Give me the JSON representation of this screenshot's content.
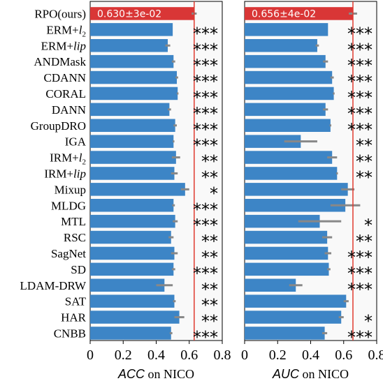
{
  "chart_data": {
    "type": "bar",
    "orientation": "horizontal",
    "categories": [
      "RPO(ours)",
      "ERM+l2",
      "ERM+lip",
      "ANDMask",
      "CDANN",
      "CORAL",
      "DANN",
      "GroupDRO",
      "IGA",
      "IRM+l2",
      "IRM+lip",
      "Mixup",
      "MLDG",
      "MTL",
      "RSC",
      "SagNet",
      "SD",
      "LDAM-DRW",
      "SAT",
      "HAR",
      "CNBB"
    ],
    "category_parts": [
      [
        {
          "t": "RPO(ours)",
          "s": "n"
        }
      ],
      [
        {
          "t": "ERM+",
          "s": "n"
        },
        {
          "t": "l",
          "s": "i"
        },
        {
          "t": "2",
          "s": "sub"
        }
      ],
      [
        {
          "t": "ERM+",
          "s": "n"
        },
        {
          "t": "lip",
          "s": "i"
        }
      ],
      [
        {
          "t": "ANDMask",
          "s": "n"
        }
      ],
      [
        {
          "t": "CDANN",
          "s": "n"
        }
      ],
      [
        {
          "t": "CORAL",
          "s": "n"
        }
      ],
      [
        {
          "t": "DANN",
          "s": "n"
        }
      ],
      [
        {
          "t": "GroupDRO",
          "s": "n"
        }
      ],
      [
        {
          "t": "IGA",
          "s": "n"
        }
      ],
      [
        {
          "t": "IRM+",
          "s": "n"
        },
        {
          "t": "l",
          "s": "i"
        },
        {
          "t": "2",
          "s": "sub"
        }
      ],
      [
        {
          "t": "IRM+",
          "s": "n"
        },
        {
          "t": "lip",
          "s": "i"
        }
      ],
      [
        {
          "t": "Mixup",
          "s": "n"
        }
      ],
      [
        {
          "t": "MLDG",
          "s": "n"
        }
      ],
      [
        {
          "t": "MTL",
          "s": "n"
        }
      ],
      [
        {
          "t": "RSC",
          "s": "n"
        }
      ],
      [
        {
          "t": "SagNet",
          "s": "n"
        }
      ],
      [
        {
          "t": "SD",
          "s": "n"
        }
      ],
      [
        {
          "t": "LDAM-DRW",
          "s": "n"
        }
      ],
      [
        {
          "t": "SAT",
          "s": "n"
        }
      ],
      [
        {
          "t": "HAR",
          "s": "n"
        }
      ],
      [
        {
          "t": "CNBB",
          "s": "n"
        }
      ]
    ],
    "panels": [
      {
        "metric": "ACC",
        "xlabel_italic": "ACC",
        "xlabel_rest": " on NICO",
        "xlim": [
          0,
          0.8
        ],
        "xticks": [
          "0",
          "0.2",
          "0.4",
          "0.6",
          "0.8"
        ],
        "reference_line": 0.63,
        "callout": "0.630±3e-02",
        "values": [
          0.63,
          0.5,
          0.47,
          0.505,
          0.525,
          0.53,
          0.48,
          0.515,
          0.505,
          0.52,
          0.51,
          0.575,
          0.505,
          0.515,
          0.49,
          0.51,
          0.505,
          0.45,
          0.51,
          0.54,
          0.49
        ],
        "errors": [
          0.015,
          0.0,
          0.015,
          0.01,
          0.008,
          0.005,
          0.01,
          0.01,
          0.005,
          0.025,
          0.02,
          0.025,
          0.008,
          0.015,
          0.015,
          0.02,
          0.01,
          0.05,
          0.008,
          0.03,
          0.008
        ],
        "significance": [
          "",
          "***",
          "***",
          "***",
          "***",
          "***",
          "***",
          "***",
          "***",
          "**",
          "**",
          "*",
          "***",
          "***",
          "**",
          "**",
          "***",
          "**",
          "**",
          "**",
          "***"
        ]
      },
      {
        "metric": "AUC",
        "xlabel_italic": "AUC",
        "xlabel_rest": " on NICO",
        "xlim": [
          0,
          0.8
        ],
        "xticks": [
          "0",
          "0.2",
          "0.4",
          "0.6",
          "0.8"
        ],
        "reference_line": 0.656,
        "callout": "0.656±4e-02",
        "values": [
          0.656,
          0.505,
          0.44,
          0.49,
          0.53,
          0.54,
          0.49,
          0.52,
          0.34,
          0.53,
          0.56,
          0.625,
          0.61,
          0.455,
          0.5,
          0.505,
          0.51,
          0.31,
          0.615,
          0.585,
          0.485
        ],
        "errors": [
          0.025,
          0.0,
          0.01,
          0.015,
          0.01,
          0.005,
          0.015,
          0.005,
          0.1,
          0.03,
          0.005,
          0.04,
          0.09,
          0.13,
          0.03,
          0.02,
          0.01,
          0.04,
          0.015,
          0.015,
          0.015
        ],
        "significance": [
          "",
          "***",
          "***",
          "***",
          "***",
          "***",
          "***",
          "***",
          "**",
          "**",
          "**",
          "",
          "",
          "*",
          "**",
          "***",
          "***",
          "***",
          "",
          "*",
          "***"
        ]
      }
    ],
    "colors": {
      "bar": "#3d85c6",
      "rpo_bar": "#d93636",
      "error_bar": "#888888",
      "reference_line": "#e03a2f",
      "plot_background": "#f9f9f9"
    },
    "grid": false,
    "legend": "none"
  }
}
